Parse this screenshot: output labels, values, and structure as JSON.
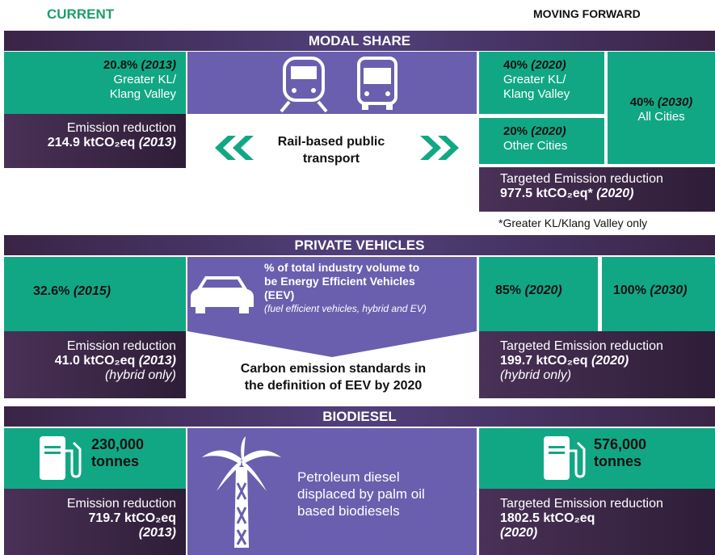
{
  "header": {
    "current": "CURRENT",
    "moving_forward": "MOVING FORWARD"
  },
  "modal_share": {
    "title": "MODAL SHARE",
    "current": {
      "value": "20.8%",
      "year": "(2013)",
      "lines": [
        "Greater KL/",
        "Klang Valley"
      ]
    },
    "current_emission": {
      "label": "Emission reduction",
      "value": "214.9 ktCO₂eq",
      "year": "(2013)"
    },
    "center": [
      "Rail-based public",
      "transport"
    ],
    "targets": [
      {
        "value": "40%",
        "year": "(2020)",
        "lines": [
          "Greater KL/",
          "Klang Valley"
        ]
      },
      {
        "value": "20%",
        "year": "(2020)",
        "lines": [
          "Other Cities"
        ]
      },
      {
        "value": "40%",
        "year": "(2030)",
        "lines": [
          "All Cities"
        ]
      }
    ],
    "target_emission": {
      "label": "Targeted Emission reduction",
      "value": "977.5 ktCO₂eq*",
      "year": "(2020)"
    },
    "footnote": "*Greater KL/Klang Valley only"
  },
  "private_vehicles": {
    "title": "PRIVATE VEHICLES",
    "current": {
      "value": "32.6%",
      "year": "(2015)"
    },
    "center": {
      "lines": [
        "% of total industry volume to",
        "be Energy Efficient Vehicles",
        "(EEV)"
      ],
      "note": "(fuel efficient vehicles, hybrid and EV)"
    },
    "targets": [
      {
        "value": "85%",
        "year": "(2020)"
      },
      {
        "value": "100%",
        "year": "(2030)"
      }
    ],
    "current_emission": {
      "label": "Emission reduction",
      "value": "41.0 ktCO₂eq",
      "year": "(2013)",
      "note": "(hybrid only)"
    },
    "standard": [
      "Carbon emission standards in",
      "the definition of EEV by 2020"
    ],
    "target_emission": {
      "label": "Targeted Emission reduction",
      "value": "199.7 ktCO₂eq",
      "year": "(2020)",
      "note": "(hybrid only)"
    }
  },
  "biodiesel": {
    "title": "BIODIESEL",
    "current": [
      "230,000",
      "tonnes"
    ],
    "target": [
      "576,000",
      "tonnes"
    ],
    "center": [
      "Petroleum diesel",
      "displaced by palm oil",
      "based biodiesels"
    ],
    "current_emission": {
      "label": "Emission reduction",
      "value": "719.7 ktCO₂eq",
      "year": "(2013)"
    },
    "target_emission": {
      "label": "Targeted Emission reduction",
      "value": "1802.5 ktCO₂eq",
      "year": "(2020)"
    }
  }
}
